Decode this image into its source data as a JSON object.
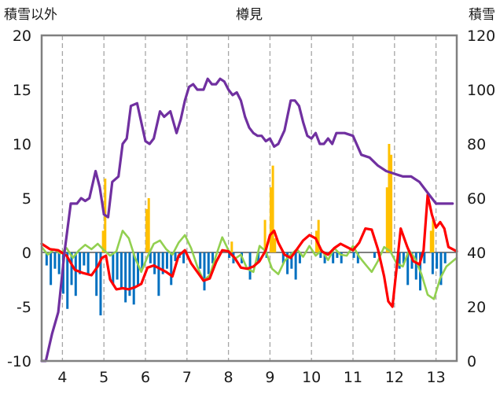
{
  "chart_data": {
    "type": "line",
    "title": "樽見",
    "left_axis_label": "積雪以外",
    "right_axis_label": "積雪",
    "left_ylim": [
      -10,
      20
    ],
    "left_ticks": [
      "20",
      "15",
      "10",
      "5",
      "0",
      "-5",
      "-10"
    ],
    "right_ylim": [
      0,
      120
    ],
    "right_ticks": [
      "120",
      "100",
      "80",
      "60",
      "40",
      "20",
      "0"
    ],
    "xlim": [
      3.5,
      13.5
    ],
    "x_ticks": [
      "4",
      "5",
      "6",
      "7",
      "8",
      "9",
      "10",
      "11",
      "12",
      "13"
    ],
    "grid": "dashed-vertical",
    "colors": {
      "snow_depth": "#7030a0",
      "red_series": "#ff0000",
      "green_series": "#92d050",
      "orange_bars": "#ffc000",
      "blue_bars": "#0070c0",
      "frame": "#808080"
    },
    "snow_depth": {
      "x": [
        3.5,
        3.6,
        3.75,
        3.9,
        4.05,
        4.2,
        4.35,
        4.45,
        4.55,
        4.65,
        4.8,
        4.9,
        5.0,
        5.1,
        5.2,
        5.35,
        5.45,
        5.55,
        5.65,
        5.8,
        5.9,
        6.0,
        6.1,
        6.2,
        6.35,
        6.45,
        6.6,
        6.75,
        6.85,
        6.95,
        7.05,
        7.15,
        7.25,
        7.4,
        7.5,
        7.6,
        7.7,
        7.8,
        7.9,
        8.0,
        8.1,
        8.2,
        8.3,
        8.4,
        8.5,
        8.6,
        8.7,
        8.8,
        8.9,
        9.0,
        9.1,
        9.2,
        9.35,
        9.5,
        9.6,
        9.7,
        9.8,
        9.9,
        10.0,
        10.1,
        10.2,
        10.3,
        10.4,
        10.5,
        10.6,
        10.7,
        10.8,
        11.0,
        11.2,
        11.4,
        11.6,
        11.8,
        12.0,
        12.2,
        12.4,
        12.6,
        12.8,
        13.0,
        13.2,
        13.4
      ],
      "values": [
        0,
        0,
        10,
        18,
        40,
        58,
        58,
        60,
        59,
        60,
        70,
        64,
        54,
        53,
        66,
        68,
        80,
        82,
        94,
        95,
        88,
        81,
        80,
        82,
        92,
        90,
        92,
        84,
        89,
        96,
        101,
        102,
        100,
        100,
        104,
        102,
        102,
        104,
        103,
        100,
        98,
        99,
        96,
        90,
        86,
        84,
        83,
        83,
        81,
        82,
        79,
        80,
        85,
        96,
        96,
        94,
        88,
        83,
        82,
        84,
        80,
        80,
        82,
        80,
        84,
        84,
        84,
        83,
        76,
        75,
        72,
        70,
        69,
        68,
        68,
        66,
        62,
        58,
        58,
        58
      ]
    },
    "red_series": {
      "x": [
        3.5,
        3.7,
        3.9,
        4.1,
        4.3,
        4.5,
        4.7,
        4.85,
        4.95,
        5.05,
        5.15,
        5.3,
        5.45,
        5.6,
        5.75,
        5.9,
        6.05,
        6.2,
        6.35,
        6.5,
        6.65,
        6.8,
        6.95,
        7.1,
        7.25,
        7.4,
        7.55,
        7.7,
        7.85,
        8.0,
        8.15,
        8.3,
        8.45,
        8.6,
        8.75,
        8.9,
        9.0,
        9.1,
        9.2,
        9.35,
        9.5,
        9.65,
        9.8,
        9.95,
        10.1,
        10.25,
        10.4,
        10.55,
        10.7,
        10.85,
        11.0,
        11.15,
        11.3,
        11.45,
        11.6,
        11.75,
        11.85,
        11.95,
        12.05,
        12.15,
        12.3,
        12.45,
        12.6,
        12.7,
        12.8,
        12.9,
        13.0,
        13.1,
        13.2,
        13.3,
        13.5
      ],
      "values": [
        0.8,
        0.3,
        0.2,
        -0.3,
        -1.6,
        -1.9,
        -2.1,
        -1.3,
        -0.5,
        -0.3,
        -2.5,
        -3.4,
        -3.3,
        -3.4,
        -3.2,
        -2.9,
        -1.4,
        -1.2,
        -1.5,
        -1.8,
        -2.2,
        -0.3,
        0.2,
        -1.0,
        -1.8,
        -2.6,
        -2.4,
        -0.9,
        0.2,
        0.1,
        -0.5,
        -1.4,
        -1.5,
        -1.3,
        -0.8,
        0.2,
        1.6,
        2.0,
        0.9,
        -0.2,
        -0.5,
        0.3,
        1.1,
        1.6,
        1.3,
        0.1,
        -0.2,
        0.4,
        0.8,
        0.5,
        0.2,
        0.9,
        2.2,
        2.1,
        0.3,
        -2.2,
        -4.5,
        -5.0,
        -1.5,
        2.2,
        0.6,
        -0.8,
        -1.1,
        0.2,
        5.3,
        3.5,
        2.3,
        2.8,
        2.2,
        0.5,
        0.1
      ]
    },
    "green_series": {
      "x": [
        3.5,
        3.65,
        3.8,
        3.95,
        4.1,
        4.25,
        4.4,
        4.55,
        4.7,
        4.85,
        5.0,
        5.15,
        5.3,
        5.45,
        5.6,
        5.75,
        5.9,
        6.05,
        6.2,
        6.35,
        6.5,
        6.65,
        6.8,
        6.95,
        7.1,
        7.25,
        7.4,
        7.55,
        7.7,
        7.85,
        8.0,
        8.15,
        8.3,
        8.45,
        8.6,
        8.75,
        8.9,
        9.05,
        9.2,
        9.35,
        9.5,
        9.65,
        9.8,
        9.95,
        10.1,
        10.25,
        10.4,
        10.55,
        10.7,
        10.85,
        11.0,
        11.15,
        11.3,
        11.45,
        11.6,
        11.75,
        11.9,
        12.05,
        12.2,
        12.35,
        12.5,
        12.65,
        12.8,
        12.95,
        13.1,
        13.25,
        13.5
      ],
      "values": [
        0.5,
        -0.2,
        0.3,
        -0.1,
        0.4,
        -0.5,
        0.2,
        0.7,
        0.3,
        0.8,
        0.2,
        -0.3,
        0.1,
        2.0,
        1.3,
        -0.5,
        -1.8,
        -0.4,
        0.8,
        1.1,
        0.3,
        -0.2,
        0.9,
        1.6,
        0.4,
        -1.3,
        -2.6,
        -2.1,
        -0.3,
        1.4,
        0.2,
        -0.6,
        -0.2,
        -1.5,
        -1.8,
        0.6,
        0.1,
        -1.5,
        -2.0,
        -0.8,
        -0.2,
        0.3,
        -0.4,
        0.6,
        -0.3,
        0.2,
        -0.7,
        0.4,
        -0.2,
        -0.3,
        0.6,
        -0.4,
        -1.1,
        -1.8,
        -0.8,
        0.5,
        0.1,
        -1.0,
        -1.3,
        0.2,
        -0.6,
        -2.0,
        -3.9,
        -4.3,
        -2.4,
        -1.3,
        -0.5
      ]
    },
    "orange_bars": {
      "x": [
        4.98,
        5.03,
        6.03,
        6.08,
        8.08,
        8.88,
        9.02,
        9.07,
        9.12,
        10.12,
        10.17,
        11.82,
        11.87,
        11.92,
        12.88,
        12.93
      ],
      "values": [
        2.0,
        6.8,
        4.0,
        5.0,
        1.0,
        3.0,
        6.0,
        8.0,
        1.3,
        2.0,
        3.0,
        6.0,
        10.0,
        9.0,
        2.0,
        3.0
      ]
    },
    "blue_bars": {
      "x": [
        3.62,
        3.72,
        3.82,
        3.92,
        4.02,
        4.12,
        4.22,
        4.32,
        4.42,
        4.52,
        4.62,
        4.82,
        4.92,
        5.22,
        5.32,
        5.42,
        5.52,
        5.62,
        5.72,
        5.82,
        5.92,
        6.12,
        6.22,
        6.32,
        6.42,
        6.52,
        6.62,
        6.72,
        6.82,
        6.92,
        7.32,
        7.42,
        7.52,
        7.62,
        8.02,
        8.12,
        8.32,
        8.52,
        8.72,
        8.92,
        9.32,
        9.42,
        9.52,
        9.62,
        9.72,
        10.22,
        10.32,
        10.52,
        10.62,
        10.72,
        11.02,
        11.12,
        11.52,
        12.12,
        12.22,
        12.32,
        12.42,
        12.52,
        12.62,
        12.72,
        12.92,
        13.02,
        13.12,
        13.22
      ],
      "values": [
        -1.2,
        -3.0,
        -1.5,
        -2.0,
        -3.8,
        -5.2,
        -3.0,
        -4.0,
        -2.0,
        -1.2,
        -2.0,
        -4.0,
        -5.8,
        -3.0,
        -2.5,
        -3.3,
        -4.6,
        -4.0,
        -4.8,
        -3.0,
        -1.5,
        -1.0,
        -2.0,
        -4.0,
        -2.0,
        -1.5,
        -3.0,
        -0.8,
        -0.5,
        -1.0,
        -1.5,
        -3.5,
        -2.0,
        -1.0,
        -0.5,
        -1.0,
        -1.0,
        -2.5,
        -1.0,
        -0.5,
        -1.0,
        -2.0,
        -1.5,
        -2.5,
        -1.0,
        -0.5,
        -1.0,
        -1.0,
        -0.5,
        -1.0,
        -0.5,
        -1.0,
        -0.5,
        -1.5,
        -1.0,
        -3.0,
        -1.5,
        -2.5,
        -3.5,
        -1.0,
        -2.0,
        -1.5,
        -3.0,
        -1.0
      ]
    }
  }
}
